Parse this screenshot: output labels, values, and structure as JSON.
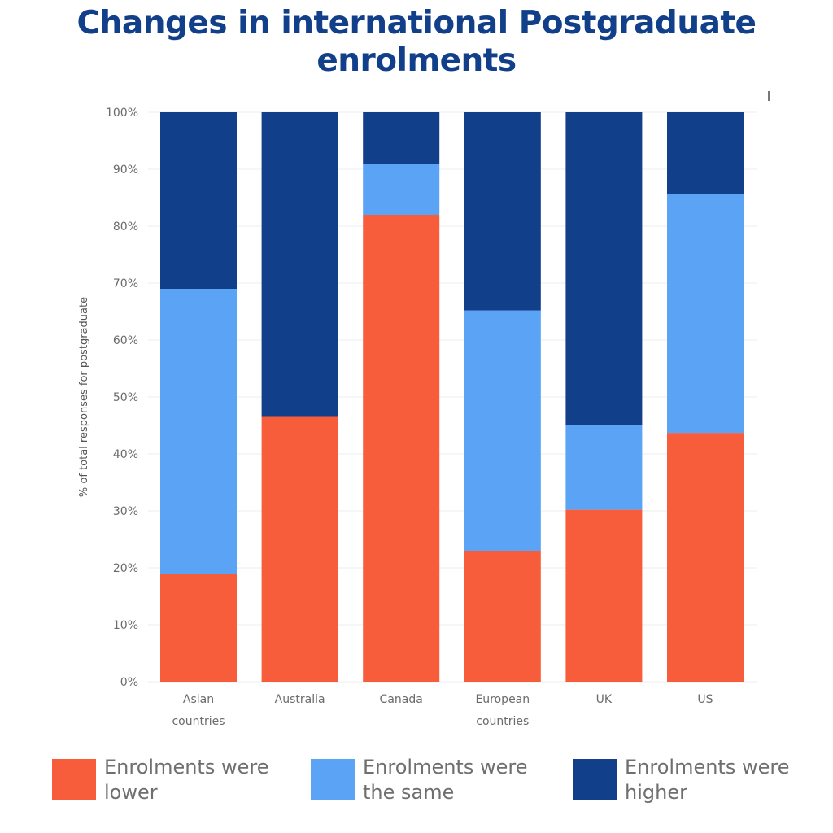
{
  "title": {
    "line1": "Changes in international Postgraduate",
    "line2": "enrolments"
  },
  "chart_data": {
    "type": "bar",
    "stacked": true,
    "categories": [
      "Asian countries",
      "Australia",
      "Canada",
      "European countries",
      "UK",
      "US"
    ],
    "category_label_lines": [
      [
        "Asian",
        "countries"
      ],
      [
        "Australia"
      ],
      [
        "Canada"
      ],
      [
        "European",
        "countries"
      ],
      [
        "UK"
      ],
      [
        "US"
      ]
    ],
    "ylabel": "% of total responses for postgraduate",
    "xlabel": "",
    "ylim": [
      0,
      100
    ],
    "yticks": [
      "0%",
      "10%",
      "20%",
      "30%",
      "40%",
      "50%",
      "60%",
      "70%",
      "80%",
      "90%",
      "100%"
    ],
    "grid": true,
    "legend_position": "bottom",
    "series": [
      {
        "name": "Enrolments were lower",
        "color": "#f85d3b",
        "values": [
          19,
          46.5,
          82,
          23,
          30.2,
          43.7
        ]
      },
      {
        "name": "Enrolments were the same",
        "color": "#5aa3f5",
        "values": [
          50,
          0,
          9,
          42.2,
          14.8,
          41.9
        ]
      },
      {
        "name": "Enrolments were higher",
        "color": "#123f8a",
        "values": [
          31,
          53.5,
          9,
          34.8,
          55,
          14.4
        ]
      }
    ]
  },
  "legend": [
    {
      "line1": "Enrolments were",
      "line2": "lower",
      "color": "#f85d3b"
    },
    {
      "line1": "Enrolments were",
      "line2": "the same",
      "color": "#5aa3f5"
    },
    {
      "line1": "Enrolments were",
      "line2": "higher",
      "color": "#123f8a"
    }
  ],
  "colors": {
    "title": "#123f8a",
    "grid": "#ececec",
    "tick_text": "#6b6b6b"
  }
}
